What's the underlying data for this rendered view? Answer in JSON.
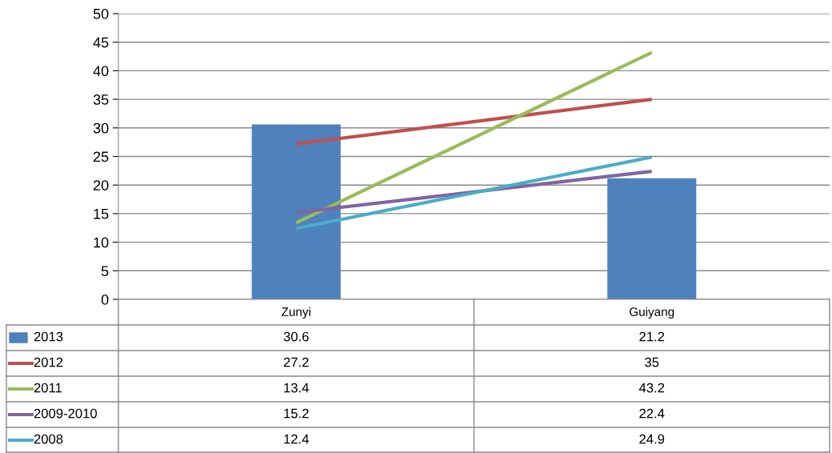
{
  "chart_data": {
    "type": "bar",
    "categories": [
      "Zunyi",
      "Guiyang"
    ],
    "series": [
      {
        "name": "2013",
        "color": "#4f81bd",
        "values": [
          30.6,
          21.2
        ]
      },
      {
        "name": "2012",
        "type": "line",
        "color": "#c0504d",
        "values": [
          27.2,
          35
        ]
      },
      {
        "name": "2011",
        "type": "line",
        "color": "#9bbb59",
        "values": [
          13.4,
          43.2
        ]
      },
      {
        "name": "2009-2010",
        "type": "line",
        "color": "#8064a2",
        "values": [
          15.2,
          22.4
        ]
      },
      {
        "name": "2008",
        "type": "line",
        "color": "#4bacc6",
        "values": [
          12.4,
          24.9
        ]
      }
    ],
    "ylim": [
      0,
      50
    ],
    "yticks": [
      0,
      5,
      10,
      15,
      20,
      25,
      30,
      35,
      40,
      45,
      50
    ],
    "grid": "y",
    "data_labels": true,
    "legend": "bottom left"
  }
}
